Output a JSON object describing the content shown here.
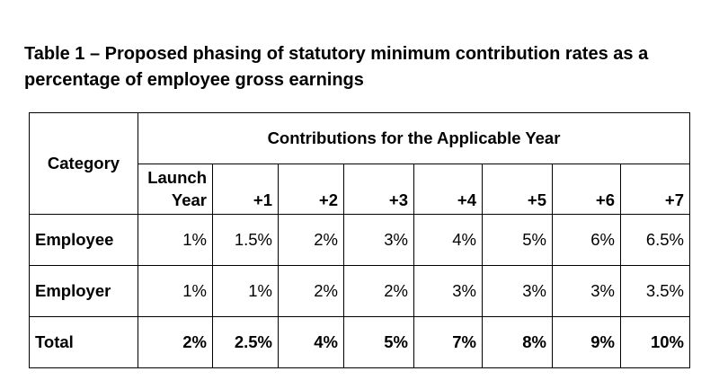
{
  "caption": "Table 1 – Proposed phasing of statutory minimum contribution rates as a percentage of employee gross earnings",
  "table": {
    "category_header": "Category",
    "span_header": "Contributions for the Applicable Year",
    "year_headers": [
      {
        "line1": "Launch",
        "line2": "Year"
      },
      {
        "line1": "",
        "line2": "+1"
      },
      {
        "line1": "",
        "line2": "+2"
      },
      {
        "line1": "",
        "line2": "+3"
      },
      {
        "line1": "",
        "line2": "+4"
      },
      {
        "line1": "",
        "line2": "+5"
      },
      {
        "line1": "",
        "line2": "+6"
      },
      {
        "line1": "",
        "line2": "+7"
      }
    ],
    "rows": [
      {
        "label": "Employee",
        "values": [
          "1%",
          "1.5%",
          "2%",
          "3%",
          "4%",
          "5%",
          "6%",
          "6.5%"
        ]
      },
      {
        "label": "Employer",
        "values": [
          "1%",
          "1%",
          "2%",
          "2%",
          "3%",
          "3%",
          "3%",
          "3.5%"
        ]
      },
      {
        "label": "Total",
        "values": [
          "2%",
          "2.5%",
          "4%",
          "5%",
          "7%",
          "8%",
          "9%",
          "10%"
        ]
      }
    ]
  }
}
